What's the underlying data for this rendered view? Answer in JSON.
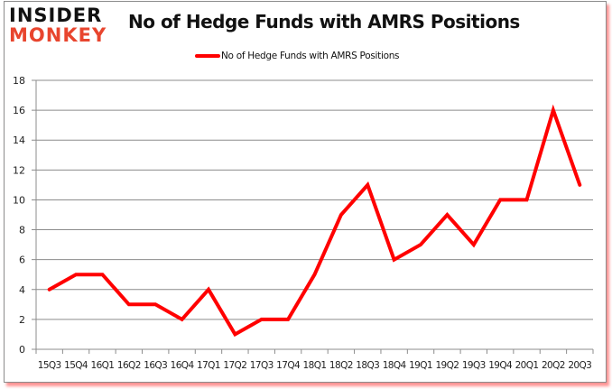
{
  "header": {
    "logo_line1": "INSIDER",
    "logo_line2": "MONKEY",
    "title": "No of Hedge Funds with AMRS Positions"
  },
  "legend": {
    "label": "No of Hedge Funds with AMRS Positions",
    "color": "#ff0000"
  },
  "colors": {
    "line": "#ff0000",
    "grid": "#8c8c8c",
    "logo_dark": "#111111",
    "logo_accent": "#e8452e"
  },
  "chart_data": {
    "type": "line",
    "title": "No of Hedge Funds with AMRS Positions",
    "xlabel": "",
    "ylabel": "",
    "categories": [
      "15Q3",
      "15Q4",
      "16Q1",
      "16Q2",
      "16Q3",
      "16Q4",
      "17Q1",
      "17Q2",
      "17Q3",
      "17Q4",
      "18Q1",
      "18Q2",
      "18Q3",
      "18Q4",
      "19Q1",
      "19Q2",
      "19Q3",
      "19Q4",
      "20Q1",
      "20Q2",
      "20Q3"
    ],
    "series": [
      {
        "name": "No of Hedge Funds with AMRS Positions",
        "color": "#ff0000",
        "values": [
          4,
          5,
          5,
          3,
          3,
          2,
          4,
          1,
          2,
          2,
          5,
          9,
          11,
          6,
          7,
          9,
          7,
          10,
          10,
          16,
          11
        ]
      }
    ],
    "ylim": [
      0,
      18
    ],
    "yticks": [
      0,
      2,
      4,
      6,
      8,
      10,
      12,
      14,
      16,
      18
    ],
    "grid": true,
    "legend_position": "top"
  }
}
